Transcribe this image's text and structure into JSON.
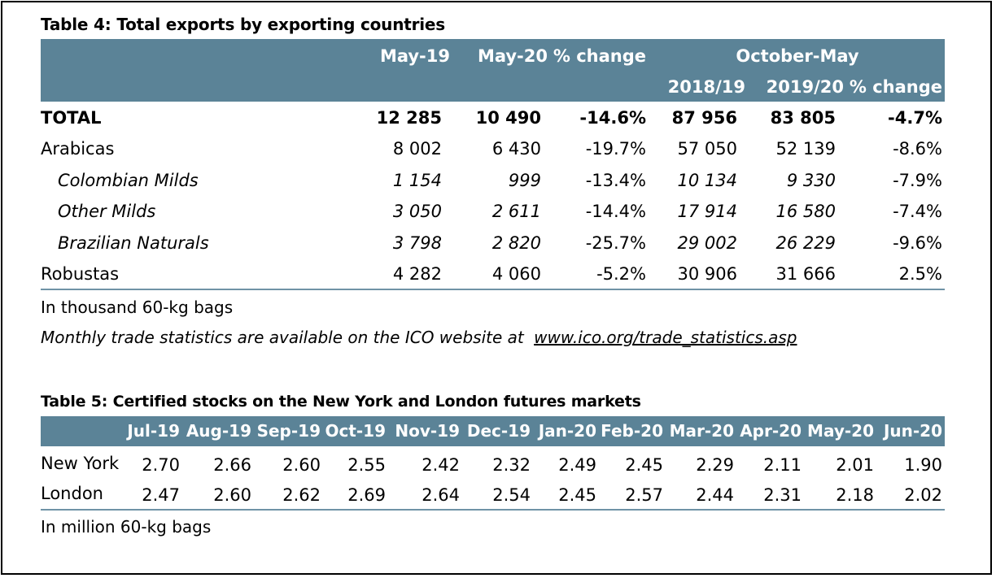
{
  "table4": {
    "title": "Table 4: Total exports by exporting countries",
    "headers": {
      "may19": "May-19",
      "may20": "May-20",
      "pct_change": "% change",
      "oct_may": "October-May",
      "y2018": "2018/19",
      "y2019": "2019/20",
      "pct_change2": "% change"
    },
    "rows": [
      {
        "label": "TOTAL",
        "may19": "12 285",
        "may20": "10 490",
        "pct": "-14.6%",
        "y2018": "87 956",
        "y2019": "83 805",
        "pct2": "-4.7%"
      },
      {
        "label": "Arabicas",
        "may19": "8 002",
        "may20": "6 430",
        "pct": "-19.7%",
        "y2018": "57 050",
        "y2019": "52 139",
        "pct2": "-8.6%"
      },
      {
        "label": "Colombian Milds",
        "may19": "1 154",
        "may20": "999",
        "pct": "-13.4%",
        "y2018": "10 134",
        "y2019": "9 330",
        "pct2": "-7.9%"
      },
      {
        "label": "Other Milds",
        "may19": "3 050",
        "may20": "2 611",
        "pct": "-14.4%",
        "y2018": "17 914",
        "y2019": "16 580",
        "pct2": "-7.4%"
      },
      {
        "label": "Brazilian Naturals",
        "may19": "3 798",
        "may20": "2 820",
        "pct": "-25.7%",
        "y2018": "29 002",
        "y2019": "26 229",
        "pct2": "-9.6%"
      },
      {
        "label": "Robustas",
        "may19": "4 282",
        "may20": "4 060",
        "pct": "-5.2%",
        "y2018": "30 906",
        "y2019": "31 666",
        "pct2": "2.5%"
      }
    ],
    "note_units": "In thousand 60-kg bags",
    "note_source_text": "Monthly trade statistics are available on the ICO website at",
    "note_link": "www.ico.org/trade_statistics.asp"
  },
  "table5": {
    "title": "Table 5: Certified stocks on the New York and London futures markets",
    "months": [
      "Jul-19",
      "Aug-19",
      "Sep-19",
      "Oct-19",
      "Nov-19",
      "Dec-19",
      "Jan-20",
      "Feb-20",
      "Mar-20",
      "Apr-20",
      "May-20",
      "Jun-20"
    ],
    "rows": [
      {
        "label": "New York",
        "values": [
          "2.70",
          "2.66",
          "2.60",
          "2.55",
          "2.42",
          "2.32",
          "2.49",
          "2.45",
          "2.29",
          "2.11",
          "2.01",
          "1.90"
        ]
      },
      {
        "label": "London",
        "values": [
          "2.47",
          "2.60",
          "2.62",
          "2.69",
          "2.64",
          "2.54",
          "2.45",
          "2.57",
          "2.44",
          "2.31",
          "2.18",
          "2.02"
        ]
      }
    ],
    "note_units": "In million 60-kg bags"
  },
  "colors": {
    "header_bg": "#5b8397",
    "header_text": "#ffffff",
    "rule": "#6f93a6"
  }
}
